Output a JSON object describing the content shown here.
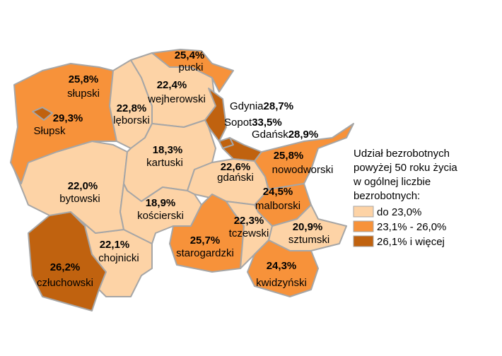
{
  "map": {
    "regions": [
      {
        "name": "człuchowski",
        "value": 26.2,
        "value_label": "26,2%",
        "color": "#c0620f"
      },
      {
        "name": "chojnicki",
        "value": 22.1,
        "value_label": "22,1%",
        "color": "#fdd3a6"
      },
      {
        "name": "bytowski",
        "value": 22.0,
        "value_label": "22,0%",
        "color": "#fdd3a6"
      },
      {
        "name": "słupski",
        "value": 25.8,
        "value_label": "25,8%",
        "color": "#f7923a"
      },
      {
        "name": "Słupsk",
        "value": 29.3,
        "value_label": "29,3%",
        "color": "#c0620f"
      },
      {
        "name": "lęborski",
        "value": 22.8,
        "value_label": "22,8%",
        "color": "#fdd3a6"
      },
      {
        "name": "wejherowski",
        "value": 22.4,
        "value_label": "22,4%",
        "color": "#fdd3a6"
      },
      {
        "name": "pucki",
        "value": 25.4,
        "value_label": "25,4%",
        "color": "#f7923a"
      },
      {
        "name": "Gdynia",
        "value": 28.7,
        "value_label": "28,7%",
        "color": "#c0620f"
      },
      {
        "name": "Sopot",
        "value": 33.5,
        "value_label": "33,5%",
        "color": "#c0620f"
      },
      {
        "name": "Gdańsk",
        "value": 28.9,
        "value_label": "28,9%",
        "color": "#c0620f"
      },
      {
        "name": "kartuski",
        "value": 18.3,
        "value_label": "18,3%",
        "color": "#fdd3a6"
      },
      {
        "name": "gdański",
        "value": 22.6,
        "value_label": "22,6%",
        "color": "#fdd3a6"
      },
      {
        "name": "nowodworski",
        "value": 25.8,
        "value_label": "25,8%",
        "color": "#f7923a"
      },
      {
        "name": "malborski",
        "value": 24.5,
        "value_label": "24,5%",
        "color": "#f7923a"
      },
      {
        "name": "kościerski",
        "value": 18.9,
        "value_label": "18,9%",
        "color": "#fdd3a6"
      },
      {
        "name": "starogardzki",
        "value": 25.7,
        "value_label": "25,7%",
        "color": "#f7923a"
      },
      {
        "name": "tczewski",
        "value": 22.3,
        "value_label": "22,3%",
        "color": "#fdd3a6"
      },
      {
        "name": "sztumski",
        "value": 20.9,
        "value_label": "20,9%",
        "color": "#fdd3a6"
      },
      {
        "name": "kwidzyński",
        "value": 24.3,
        "value_label": "24,3%",
        "color": "#f7923a"
      }
    ],
    "legend": {
      "title_lines": [
        "Udział bezrobotnych",
        "powyżej 50 roku życia",
        "w ogólnej liczbie",
        "bezrobotnych:"
      ],
      "entries": [
        {
          "label": "do 23,0%",
          "color": "#fdd3a6"
        },
        {
          "label": "23,1% - 26,0%",
          "color": "#f7923a"
        },
        {
          "label": "26,1% i więcej",
          "color": "#c0620f"
        }
      ]
    }
  }
}
